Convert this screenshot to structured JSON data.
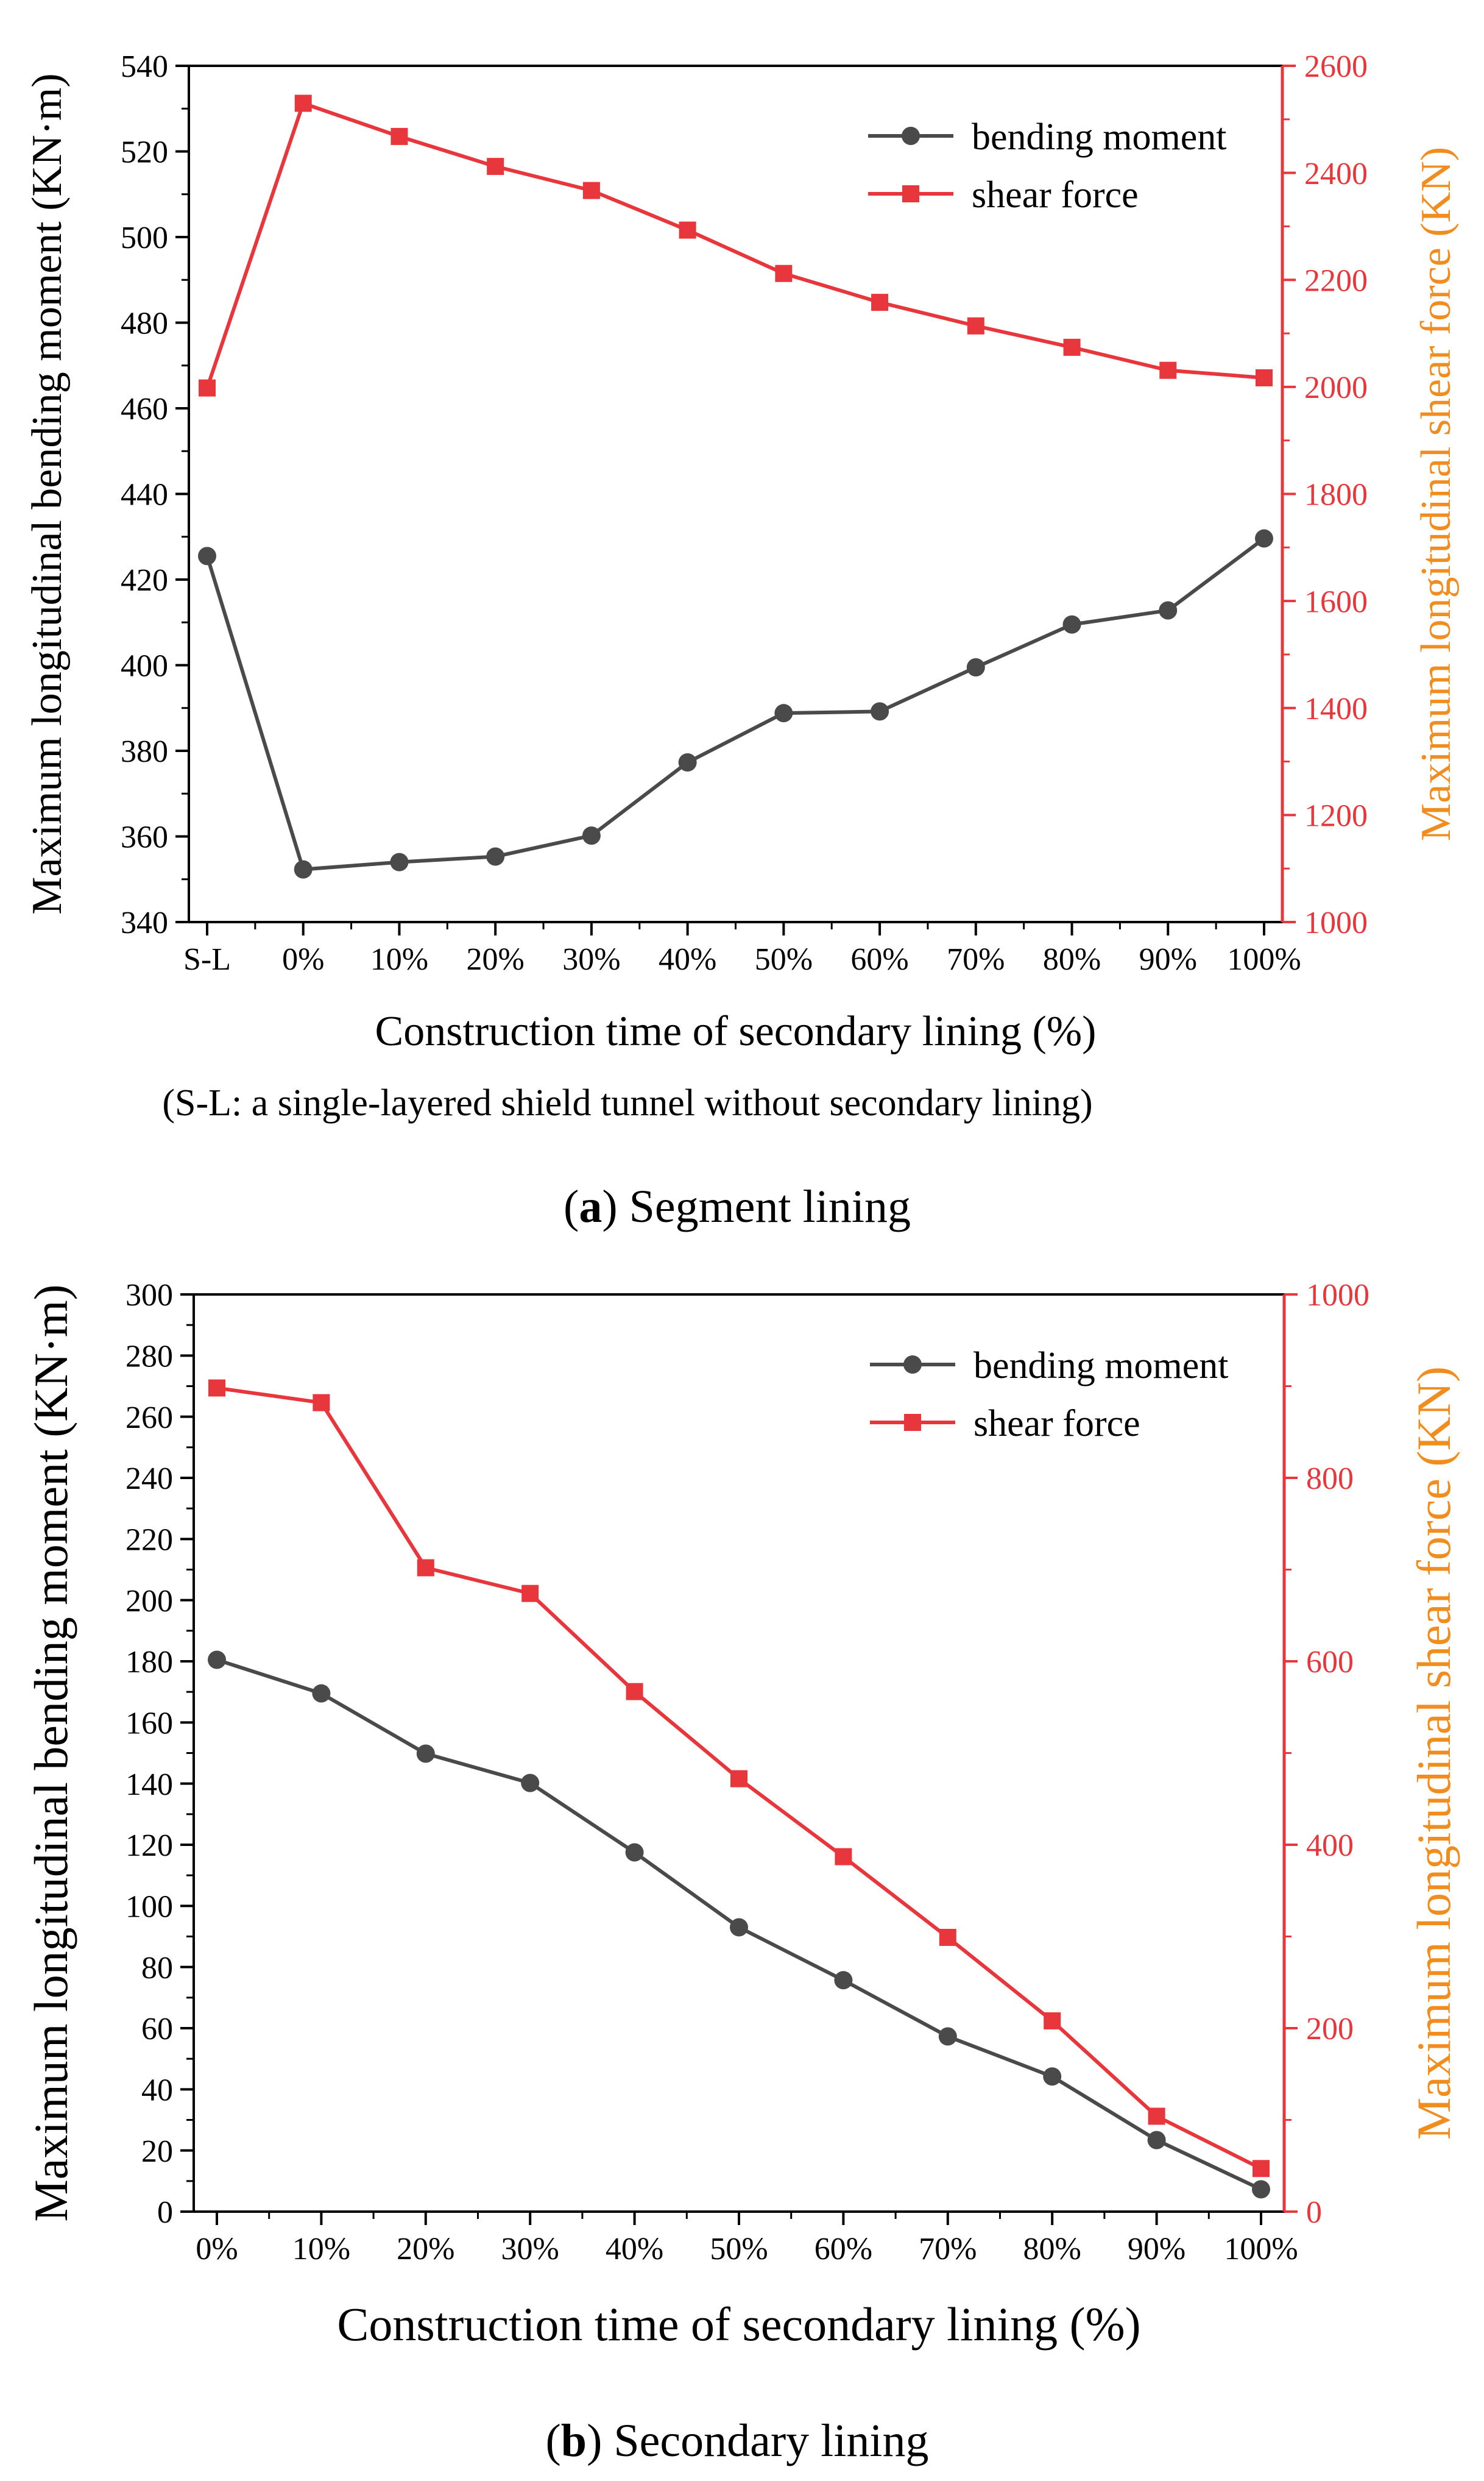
{
  "chart_data": [
    {
      "type": "line",
      "panel_label": "a",
      "caption": "Segment lining",
      "note": "(S-L: a single-layered shield tunnel without secondary lining)",
      "xlabel": "Construction time of secondary lining (%)",
      "ylabel_left": "Maximum longitudinal bending moment (KN·m)",
      "ylabel_right": "Maximum longitudinal shear force (KN)",
      "categories": [
        "S-L",
        "0%",
        "10%",
        "20%",
        "30%",
        "40%",
        "50%",
        "60%",
        "70%",
        "80%",
        "90%",
        "100%"
      ],
      "ylim_left": [
        340,
        540
      ],
      "yticks_left": [
        340,
        360,
        380,
        400,
        420,
        440,
        460,
        480,
        500,
        520,
        540
      ],
      "ylim_right": [
        1000,
        2600
      ],
      "yticks_right": [
        1000,
        1200,
        1400,
        1600,
        1800,
        2000,
        2200,
        2400,
        2600
      ],
      "legend_position": "top-right",
      "series": [
        {
          "name": "bending moment",
          "axis": "left",
          "marker": "circle",
          "color": "#4a4a4a",
          "values": [
            425.5,
            352.3,
            354.0,
            355.3,
            360.2,
            377.3,
            388.8,
            389.2,
            399.5,
            409.5,
            412.8,
            429.6
          ]
        },
        {
          "name": "shear force",
          "axis": "right",
          "marker": "square",
          "color": "#e8373c",
          "values": [
            1998,
            2530,
            2468,
            2412,
            2367,
            2293,
            2212,
            2158,
            2114,
            2074,
            2031,
            2017
          ]
        }
      ]
    },
    {
      "type": "line",
      "panel_label": "b",
      "caption": "Secondary lining",
      "xlabel": "Construction time of secondary lining (%)",
      "ylabel_left": "Maximum longitudinal bending moment (KN·m)",
      "ylabel_right": "Maximum longitudinal shear force (KN)",
      "categories": [
        "0%",
        "10%",
        "20%",
        "30%",
        "40%",
        "50%",
        "60%",
        "70%",
        "80%",
        "90%",
        "100%"
      ],
      "ylim_left": [
        0,
        300
      ],
      "yticks_left": [
        0,
        20,
        40,
        60,
        80,
        100,
        120,
        140,
        160,
        180,
        200,
        220,
        240,
        260,
        280,
        300
      ],
      "ylim_right": [
        0,
        1000
      ],
      "yticks_right": [
        0,
        200,
        400,
        600,
        800,
        1000
      ],
      "legend_position": "top-right",
      "series": [
        {
          "name": "bending moment",
          "axis": "left",
          "marker": "circle",
          "color": "#4a4a4a",
          "values": [
            180.5,
            169.5,
            149.8,
            140.2,
            117.5,
            93.0,
            75.7,
            57.3,
            44.2,
            23.4,
            7.3
          ]
        },
        {
          "name": "shear force",
          "axis": "right",
          "marker": "square",
          "color": "#e8373c",
          "values": [
            898,
            882,
            702,
            674,
            567,
            472,
            387,
            299,
            208,
            104,
            47
          ]
        }
      ]
    }
  ],
  "colors": {
    "axis_right": "#e8373c",
    "label_right": "#f08d1e",
    "axis_left": "#000000"
  }
}
